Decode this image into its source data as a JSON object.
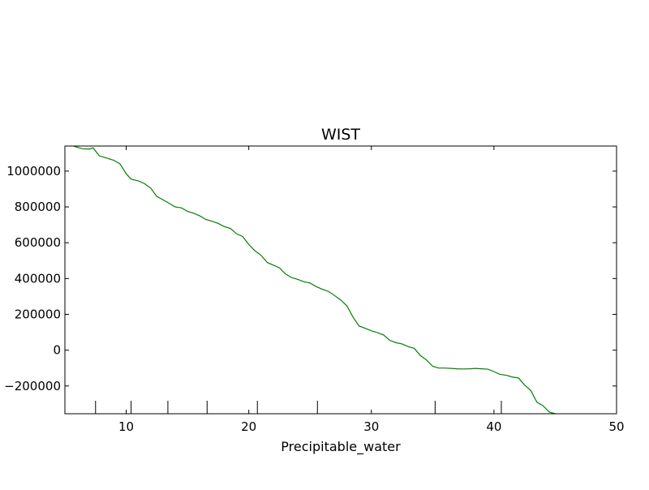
{
  "chart_data": {
    "type": "line",
    "title": "WIST",
    "xlabel": "Precipitable_water",
    "ylabel": "",
    "xlim": [
      5,
      50
    ],
    "ylim": [
      -355000,
      1140000
    ],
    "x_ticks": [
      10,
      20,
      30,
      40,
      50
    ],
    "x_tick_labels": [
      "10",
      "20",
      "30",
      "40",
      "50"
    ],
    "y_ticks": [
      -200000,
      0,
      200000,
      400000,
      600000,
      800000,
      1000000
    ],
    "y_tick_labels": [
      "−200000",
      "0",
      "200000",
      "400000",
      "600000",
      "800000",
      "1000000"
    ],
    "rug_ticks": [
      7.5,
      10.4,
      13.4,
      16.6,
      20.7,
      25.6,
      35.2,
      40.6
    ],
    "grid": false,
    "series": [
      {
        "color": "#008000",
        "x": [
          5.7,
          6.4,
          7.0,
          7.3,
          7.8,
          8.3,
          9.0,
          9.5,
          10.0,
          10.4,
          11.0,
          11.5,
          12.0,
          12.5,
          13.0,
          13.5,
          14.0,
          14.5,
          15.0,
          15.5,
          16.0,
          16.5,
          17.0,
          17.5,
          18.0,
          18.5,
          19.0,
          19.5,
          20.0,
          20.5,
          21.0,
          21.5,
          22.0,
          22.5,
          23.0,
          23.5,
          24.0,
          24.5,
          25.0,
          25.5,
          26.0,
          26.5,
          27.0,
          27.5,
          28.0,
          28.5,
          29.0,
          29.5,
          30.0,
          30.5,
          31.0,
          31.5,
          32.0,
          32.5,
          33.0,
          33.5,
          34.0,
          34.5,
          35.0,
          35.5,
          36.0,
          36.5,
          37.0,
          37.5,
          38.0,
          38.5,
          39.0,
          39.5,
          40.0,
          40.5,
          41.0,
          41.5,
          42.0,
          42.5,
          43.0,
          43.5,
          44.0,
          44.5,
          45.0
        ],
        "y": [
          1140000,
          1125000,
          1123000,
          1130000,
          1085000,
          1075000,
          1060000,
          1040000,
          985000,
          955000,
          945000,
          930000,
          905000,
          858000,
          840000,
          820000,
          800000,
          795000,
          775000,
          765000,
          750000,
          730000,
          720000,
          708000,
          690000,
          680000,
          650000,
          635000,
          590000,
          555000,
          530000,
          490000,
          475000,
          460000,
          425000,
          405000,
          395000,
          382000,
          375000,
          355000,
          340000,
          328000,
          305000,
          280000,
          248000,
          185000,
          135000,
          122000,
          108000,
          98000,
          85000,
          55000,
          42000,
          35000,
          20000,
          10000,
          -30000,
          -55000,
          -90000,
          -100000,
          -100000,
          -102000,
          -104000,
          -105000,
          -104000,
          -102000,
          -104000,
          -106000,
          -120000,
          -135000,
          -140000,
          -150000,
          -155000,
          -195000,
          -225000,
          -290000,
          -310000,
          -345000,
          -355000
        ]
      }
    ]
  }
}
